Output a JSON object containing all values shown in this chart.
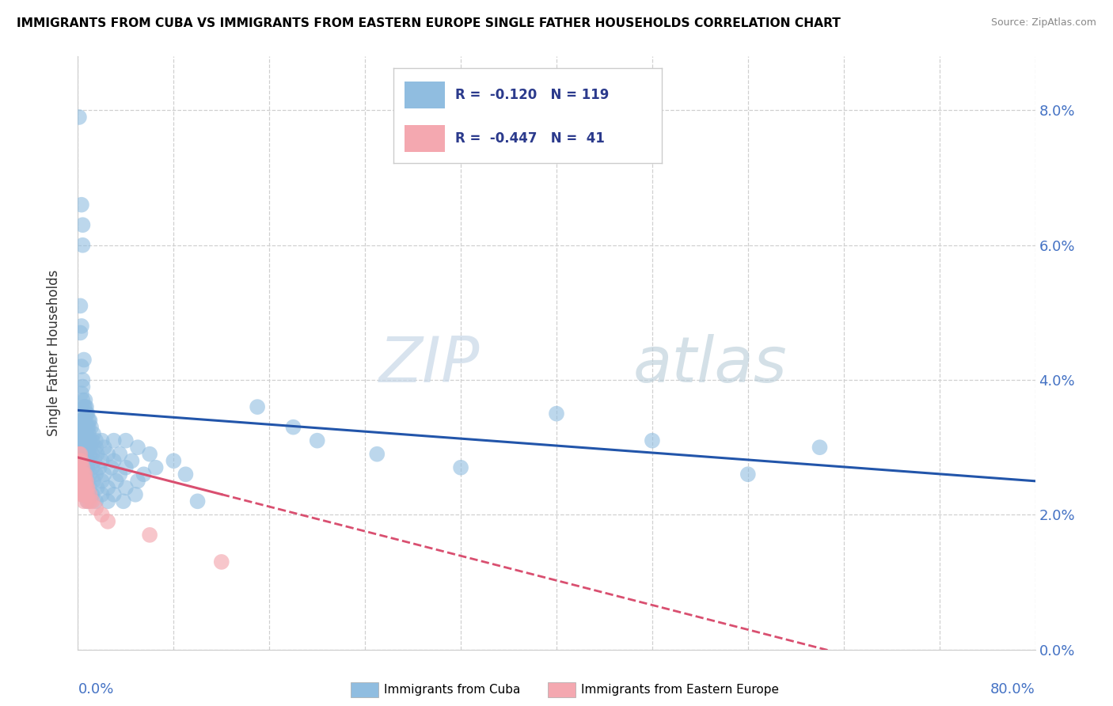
{
  "title": "IMMIGRANTS FROM CUBA VS IMMIGRANTS FROM EASTERN EUROPE SINGLE FATHER HOUSEHOLDS CORRELATION CHART",
  "source": "Source: ZipAtlas.com",
  "ylabel": "Single Father Households",
  "legend_blue_R": "-0.120",
  "legend_blue_N": "119",
  "legend_pink_R": "-0.447",
  "legend_pink_N": "41",
  "blue_color": "#90bde0",
  "pink_color": "#f4a8b0",
  "line_blue": "#2255aa",
  "line_pink": "#d94f70",
  "text_color_R": "#2b3a8c",
  "text_color_N": "#2b3a8c",
  "watermark": "ZIPAtlas",
  "xlim": [
    0.0,
    0.8
  ],
  "ylim": [
    0.0,
    0.088
  ],
  "y_ticks": [
    0.0,
    0.02,
    0.04,
    0.06,
    0.08
  ],
  "blue_scatter": [
    [
      0.001,
      0.079
    ],
    [
      0.003,
      0.066
    ],
    [
      0.004,
      0.063
    ],
    [
      0.004,
      0.06
    ],
    [
      0.002,
      0.051
    ],
    [
      0.003,
      0.048
    ],
    [
      0.002,
      0.047
    ],
    [
      0.005,
      0.043
    ],
    [
      0.003,
      0.042
    ],
    [
      0.004,
      0.04
    ],
    [
      0.004,
      0.039
    ],
    [
      0.003,
      0.038
    ],
    [
      0.004,
      0.037
    ],
    [
      0.006,
      0.037
    ],
    [
      0.005,
      0.036
    ],
    [
      0.006,
      0.036
    ],
    [
      0.007,
      0.036
    ],
    [
      0.003,
      0.035
    ],
    [
      0.007,
      0.035
    ],
    [
      0.008,
      0.035
    ],
    [
      0.003,
      0.034
    ],
    [
      0.004,
      0.034
    ],
    [
      0.005,
      0.034
    ],
    [
      0.006,
      0.034
    ],
    [
      0.009,
      0.034
    ],
    [
      0.01,
      0.034
    ],
    [
      0.003,
      0.033
    ],
    [
      0.004,
      0.033
    ],
    [
      0.006,
      0.033
    ],
    [
      0.008,
      0.033
    ],
    [
      0.009,
      0.033
    ],
    [
      0.011,
      0.033
    ],
    [
      0.003,
      0.032
    ],
    [
      0.004,
      0.032
    ],
    [
      0.005,
      0.032
    ],
    [
      0.007,
      0.032
    ],
    [
      0.009,
      0.032
    ],
    [
      0.013,
      0.032
    ],
    [
      0.002,
      0.031
    ],
    [
      0.003,
      0.031
    ],
    [
      0.004,
      0.031
    ],
    [
      0.005,
      0.031
    ],
    [
      0.006,
      0.031
    ],
    [
      0.008,
      0.031
    ],
    [
      0.01,
      0.031
    ],
    [
      0.012,
      0.031
    ],
    [
      0.015,
      0.031
    ],
    [
      0.02,
      0.031
    ],
    [
      0.03,
      0.031
    ],
    [
      0.04,
      0.031
    ],
    [
      0.002,
      0.03
    ],
    [
      0.003,
      0.03
    ],
    [
      0.005,
      0.03
    ],
    [
      0.007,
      0.03
    ],
    [
      0.01,
      0.03
    ],
    [
      0.015,
      0.03
    ],
    [
      0.022,
      0.03
    ],
    [
      0.05,
      0.03
    ],
    [
      0.002,
      0.029
    ],
    [
      0.003,
      0.029
    ],
    [
      0.004,
      0.029
    ],
    [
      0.005,
      0.029
    ],
    [
      0.007,
      0.029
    ],
    [
      0.01,
      0.029
    ],
    [
      0.012,
      0.029
    ],
    [
      0.016,
      0.029
    ],
    [
      0.025,
      0.029
    ],
    [
      0.035,
      0.029
    ],
    [
      0.06,
      0.029
    ],
    [
      0.002,
      0.028
    ],
    [
      0.004,
      0.028
    ],
    [
      0.006,
      0.028
    ],
    [
      0.009,
      0.028
    ],
    [
      0.014,
      0.028
    ],
    [
      0.02,
      0.028
    ],
    [
      0.03,
      0.028
    ],
    [
      0.045,
      0.028
    ],
    [
      0.08,
      0.028
    ],
    [
      0.002,
      0.027
    ],
    [
      0.005,
      0.027
    ],
    [
      0.008,
      0.027
    ],
    [
      0.012,
      0.027
    ],
    [
      0.018,
      0.027
    ],
    [
      0.028,
      0.027
    ],
    [
      0.04,
      0.027
    ],
    [
      0.065,
      0.027
    ],
    [
      0.003,
      0.026
    ],
    [
      0.006,
      0.026
    ],
    [
      0.01,
      0.026
    ],
    [
      0.015,
      0.026
    ],
    [
      0.022,
      0.026
    ],
    [
      0.035,
      0.026
    ],
    [
      0.055,
      0.026
    ],
    [
      0.09,
      0.026
    ],
    [
      0.004,
      0.025
    ],
    [
      0.008,
      0.025
    ],
    [
      0.013,
      0.025
    ],
    [
      0.02,
      0.025
    ],
    [
      0.032,
      0.025
    ],
    [
      0.05,
      0.025
    ],
    [
      0.005,
      0.024
    ],
    [
      0.01,
      0.024
    ],
    [
      0.016,
      0.024
    ],
    [
      0.025,
      0.024
    ],
    [
      0.04,
      0.024
    ],
    [
      0.007,
      0.023
    ],
    [
      0.012,
      0.023
    ],
    [
      0.02,
      0.023
    ],
    [
      0.03,
      0.023
    ],
    [
      0.048,
      0.023
    ],
    [
      0.008,
      0.022
    ],
    [
      0.015,
      0.022
    ],
    [
      0.025,
      0.022
    ],
    [
      0.038,
      0.022
    ],
    [
      0.1,
      0.022
    ],
    [
      0.15,
      0.036
    ],
    [
      0.18,
      0.033
    ],
    [
      0.2,
      0.031
    ],
    [
      0.25,
      0.029
    ],
    [
      0.32,
      0.027
    ],
    [
      0.4,
      0.035
    ],
    [
      0.48,
      0.031
    ],
    [
      0.56,
      0.026
    ],
    [
      0.62,
      0.03
    ]
  ],
  "pink_scatter": [
    [
      0.001,
      0.029
    ],
    [
      0.001,
      0.028
    ],
    [
      0.001,
      0.027
    ],
    [
      0.002,
      0.029
    ],
    [
      0.002,
      0.028
    ],
    [
      0.002,
      0.026
    ],
    [
      0.002,
      0.025
    ],
    [
      0.002,
      0.024
    ],
    [
      0.003,
      0.028
    ],
    [
      0.003,
      0.027
    ],
    [
      0.003,
      0.026
    ],
    [
      0.003,
      0.025
    ],
    [
      0.003,
      0.024
    ],
    [
      0.003,
      0.023
    ],
    [
      0.004,
      0.027
    ],
    [
      0.004,
      0.026
    ],
    [
      0.004,
      0.025
    ],
    [
      0.004,
      0.024
    ],
    [
      0.004,
      0.023
    ],
    [
      0.005,
      0.026
    ],
    [
      0.005,
      0.025
    ],
    [
      0.005,
      0.024
    ],
    [
      0.005,
      0.023
    ],
    [
      0.005,
      0.022
    ],
    [
      0.006,
      0.026
    ],
    [
      0.006,
      0.025
    ],
    [
      0.006,
      0.024
    ],
    [
      0.007,
      0.025
    ],
    [
      0.007,
      0.024
    ],
    [
      0.007,
      0.023
    ],
    [
      0.008,
      0.024
    ],
    [
      0.008,
      0.023
    ],
    [
      0.008,
      0.022
    ],
    [
      0.01,
      0.023
    ],
    [
      0.01,
      0.022
    ],
    [
      0.012,
      0.022
    ],
    [
      0.015,
      0.021
    ],
    [
      0.02,
      0.02
    ],
    [
      0.025,
      0.019
    ],
    [
      0.06,
      0.017
    ],
    [
      0.12,
      0.013
    ]
  ]
}
